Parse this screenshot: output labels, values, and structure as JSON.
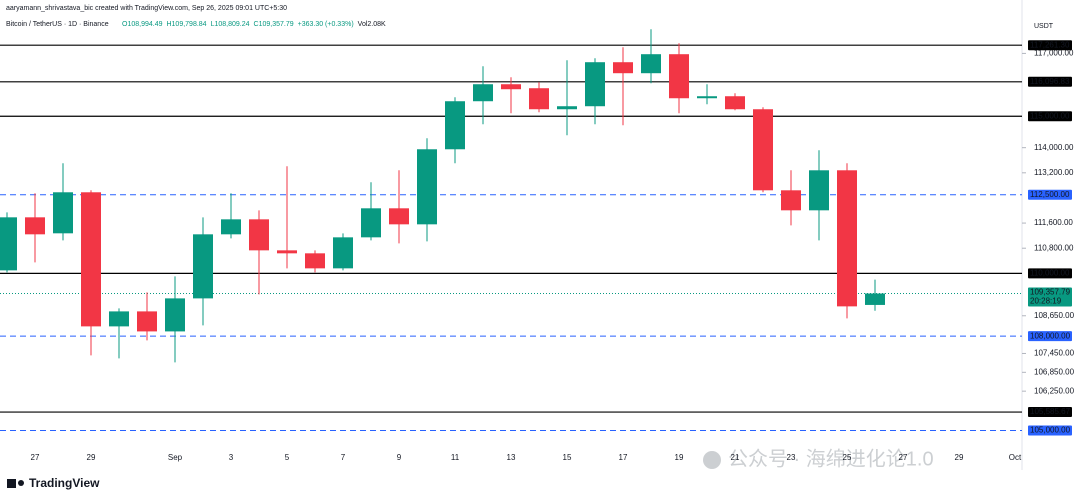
{
  "chart_data": {
    "type": "candlestick",
    "credit": "aaryamann_shrivastava_bic created with TradingView.com, Sep 26, 2025 09:01 UTC+5:30",
    "symbol": "Bitcoin / TetherUS · 1D · Binance",
    "ohlc_text": [
      "O108,994.49",
      "H109,798.84",
      "L108,809.24",
      "C109,357.79",
      "+363.30 (+0.33%)",
      "Vol2.08K"
    ],
    "currency": "USDT",
    "brand": "TradingView",
    "watermark": "公众号 · 海绵进化论1.0",
    "up_color": "#089981",
    "down_color": "#f23645",
    "categories": [
      null,
      "27",
      null,
      "29",
      null,
      null,
      "Sep",
      null,
      "3",
      null,
      "5",
      null,
      "7",
      null,
      "9",
      null,
      "11",
      null,
      "13",
      null,
      "15",
      null,
      "17",
      null,
      "19",
      null,
      "21",
      null,
      "23",
      null,
      "25",
      null,
      "27",
      null,
      "29",
      null,
      "Oct"
    ],
    "open": [
      110095,
      111783,
      111274,
      112580,
      108312,
      108789,
      108152,
      109203,
      111242,
      111719,
      110732,
      110637,
      110159,
      111146,
      112070,
      111560,
      113949,
      115478,
      116019,
      115892,
      115223,
      115319,
      116720,
      116370,
      116975,
      115573,
      115637,
      115223,
      112643,
      112006,
      113280,
      108994.49,
      null,
      null,
      null,
      null,
      null
    ],
    "high": [
      111942,
      112548,
      113503,
      112643,
      108885,
      109394,
      109904,
      111783,
      112548,
      112006,
      113408,
      110732,
      111274,
      112898,
      113280,
      114299,
      115605,
      116593,
      116242,
      116083,
      116784,
      116847,
      117198,
      117771,
      117325,
      116019,
      115733,
      115287,
      113280,
      113917,
      113503,
      109798.84,
      null,
      null,
      null,
      null,
      null
    ],
    "low": [
      110031,
      110350,
      111051,
      107388,
      107292,
      107866,
      107165,
      108343,
      111114,
      109331,
      110159,
      110031,
      110095,
      111051,
      110955,
      111019,
      113503,
      114745,
      115096,
      115127,
      114395,
      114745,
      114713,
      116051,
      115096,
      115382,
      115191,
      112580,
      111528,
      111051,
      108567,
      108809.24,
      null,
      null,
      null,
      null,
      null
    ],
    "close": [
      111783,
      111242,
      112580,
      108312,
      108789,
      108152,
      109203,
      111242,
      111719,
      110732,
      110637,
      110159,
      111146,
      112070,
      111560,
      113949,
      115478,
      116019,
      115860,
      115223,
      115319,
      116720,
      116370,
      116975,
      115573,
      115637,
      115223,
      112643,
      112006,
      113280,
      108949,
      109357.79,
      null,
      null,
      null,
      null,
      null
    ],
    "ylim": [
      103900,
      118700
    ],
    "yticks": [
      {
        "value": 117000,
        "label": "117,000.00"
      },
      {
        "value": 114000,
        "label": "114,000.00"
      },
      {
        "value": 113200,
        "label": "113,200.00"
      },
      {
        "value": 111600,
        "label": "111,600.00"
      },
      {
        "value": 110800,
        "label": "110,800.00"
      },
      {
        "value": 108650,
        "label": "108,650.00"
      },
      {
        "value": 107450,
        "label": "107,450.00"
      },
      {
        "value": 106850,
        "label": "106,850.00"
      },
      {
        "value": 106250,
        "label": "106,250.00"
      }
    ],
    "levels": [
      {
        "value": 117261.3,
        "label": "117,261.30",
        "style": "solid",
        "color": "#000000"
      },
      {
        "value": 116096.83,
        "label": "116,096.83",
        "style": "solid",
        "color": "#000000"
      },
      {
        "value": 115000,
        "label": "115,000.00",
        "style": "solid",
        "color": "#000000"
      },
      {
        "value": 112500,
        "label": "112,500.00",
        "style": "dashed",
        "color": "#2962ff"
      },
      {
        "value": 110000,
        "label": "110,000.00",
        "style": "solid",
        "color": "#000000"
      },
      {
        "value": 108000,
        "label": "108,000.00",
        "style": "dashed",
        "color": "#2962ff"
      },
      {
        "value": 105585.67,
        "label": "105,585.67",
        "style": "solid",
        "color": "#000000"
      },
      {
        "value": 105000,
        "label": "105,000.00",
        "style": "dashed",
        "color": "#2962ff"
      }
    ],
    "last_price": {
      "value": 109357.79,
      "label": "109,357.79",
      "countdown": "20:28:19",
      "color": "#089981"
    }
  }
}
